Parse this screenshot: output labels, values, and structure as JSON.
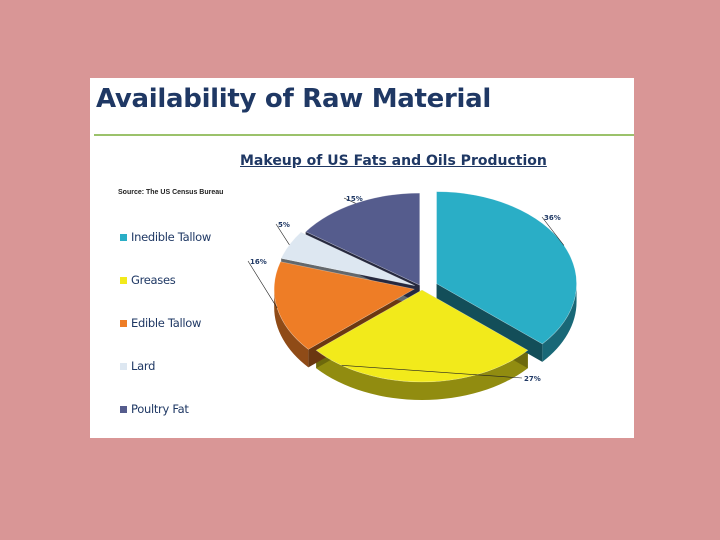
{
  "slide": {
    "title": "Availability of Raw Material"
  },
  "chart_data": {
    "type": "pie",
    "title": "Makeup of US Fats and Oils Production",
    "source": "Source: The US Census Bureau",
    "categories": [
      "Inedible Tallow",
      "Greases",
      "Edible Tallow",
      "Lard",
      "Poultry Fat"
    ],
    "values": [
      36,
      27,
      16,
      5,
      15
    ],
    "labels": [
      "36%",
      "27%",
      "16%",
      "5%",
      "15%"
    ],
    "colors": [
      "#2aaec6",
      "#f2ea1b",
      "#ee7d26",
      "#dde7f1",
      "#555c8d"
    ],
    "legend": "left",
    "style": "3d-exploded"
  }
}
